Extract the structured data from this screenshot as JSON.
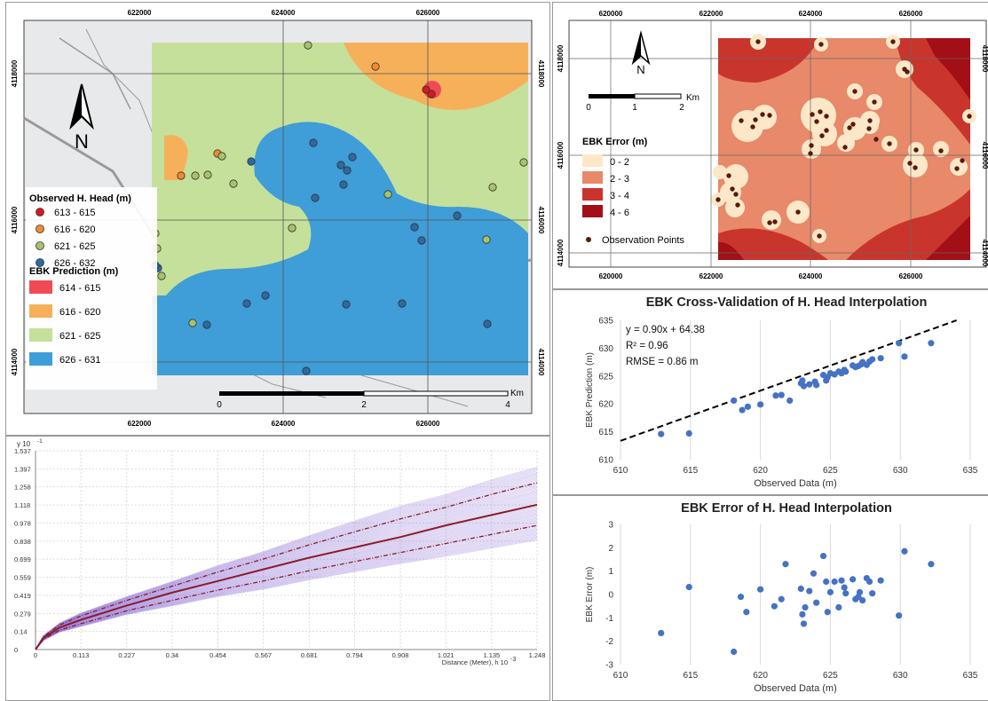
{
  "map_left": {
    "top_ticks": [
      "622000",
      "624000",
      "626000"
    ],
    "bottom_ticks": [
      "622000",
      "624000",
      "626000"
    ],
    "left_ticks": [
      "4118000",
      "4116000",
      "4114000"
    ],
    "right_ticks": [
      "4118000",
      "4116000",
      "4114000"
    ],
    "north_label": "N",
    "scale_labels": [
      "0",
      "2",
      "4"
    ],
    "scale_unit": "Km",
    "legend_observed_title": "Observed H. Head (m)",
    "observed_classes": [
      {
        "label": "613 - 615",
        "color": "#d7191c"
      },
      {
        "label": "616 - 620",
        "color": "#f08c2c"
      },
      {
        "label": "621 - 625",
        "color": "#a6c26b"
      },
      {
        "label": "626 - 632",
        "color": "#2c6aa0"
      }
    ],
    "legend_prediction_title": "EBK Prediction (m)",
    "prediction_classes": [
      {
        "label": "614 - 615",
        "color": "#f04a55"
      },
      {
        "label": "616 - 620",
        "color": "#f7b05a"
      },
      {
        "label": "621 - 625",
        "color": "#c5e09b"
      },
      {
        "label": "626 - 631",
        "color": "#3f9dd8"
      }
    ]
  },
  "map_right": {
    "top_ticks": [
      "620000",
      "622000",
      "624000",
      "626000"
    ],
    "bottom_ticks": [
      "620000",
      "622000",
      "624000",
      "626000"
    ],
    "left_ticks": [
      "4118000",
      "4116000",
      "4114000"
    ],
    "right_ticks": [
      "4118000",
      "4116000",
      "4114000"
    ],
    "north_label": "N",
    "scale_labels": [
      "0",
      "1",
      "2"
    ],
    "scale_unit": "Km",
    "legend_title": "EBK Error (m)",
    "error_classes": [
      {
        "label": "0 - 2",
        "color": "#fce8c8"
      },
      {
        "label": "2 - 3",
        "color": "#e8896a"
      },
      {
        "label": "3 - 4",
        "color": "#c9352c"
      },
      {
        "label": "4 - 6",
        "color": "#a30f16"
      }
    ],
    "points_label": "Observation Points",
    "points_color": "#5a1a0a"
  },
  "chart_data": [
    {
      "type": "scatter",
      "title": "EBK Cross-Validation of H. Head Interpolation",
      "xlabel": "Observed Data (m)",
      "ylabel": "EBK Prediction (m)",
      "xlim": [
        610,
        635
      ],
      "ylim": [
        610,
        635
      ],
      "xticks": [
        610,
        615,
        620,
        625,
        630,
        635
      ],
      "yticks": [
        610,
        615,
        620,
        625,
        630,
        635
      ],
      "annotations": [
        "y = 0.90x + 64.38",
        "R² = 0.96",
        "RMSE = 0.86 m"
      ],
      "trendline": {
        "slope": 0.9,
        "intercept": 64.38
      },
      "point_color": "#4472c4",
      "x": [
        612.9,
        614.9,
        618.1,
        618.7,
        619.1,
        620.0,
        621.1,
        621.5,
        622.1,
        622.9,
        623.0,
        623.1,
        623.5,
        623.9,
        624.0,
        624.5,
        624.7,
        624.8,
        625.0,
        625.3,
        625.6,
        625.8,
        626.0,
        626.1,
        626.6,
        626.8,
        627.0,
        627.2,
        627.3,
        627.6,
        627.8,
        628.0,
        628.6,
        629.9,
        630.3,
        632.2
      ],
      "y": [
        614.6,
        614.7,
        620.6,
        618.9,
        619.5,
        619.9,
        621.5,
        621.6,
        620.6,
        623.7,
        624.2,
        623.2,
        623.5,
        624.0,
        623.4,
        625.2,
        624.2,
        624.8,
        625.5,
        625.3,
        625.8,
        625.5,
        626.1,
        625.8,
        626.9,
        626.6,
        626.8,
        627.1,
        627.5,
        627.0,
        627.6,
        628.0,
        628.2,
        630.9,
        628.5,
        630.9
      ]
    },
    {
      "type": "scatter",
      "title": "EBK Error of H. Head Interpolation",
      "xlabel": "Observed Data (m)",
      "ylabel": "EBK Error (m)",
      "xlim": [
        610,
        635
      ],
      "ylim": [
        -3,
        3
      ],
      "xticks": [
        610,
        615,
        620,
        625,
        630,
        635
      ],
      "yticks": [
        -3,
        -2,
        -1,
        0,
        1,
        2,
        3
      ],
      "point_color": "#4472c4",
      "x": [
        612.9,
        614.9,
        618.1,
        618.6,
        619.0,
        620.0,
        621.0,
        621.5,
        621.8,
        622.9,
        623.0,
        623.1,
        623.2,
        623.5,
        623.8,
        624.0,
        624.5,
        624.7,
        624.8,
        625.0,
        625.3,
        625.6,
        625.8,
        626.0,
        626.1,
        626.6,
        626.8,
        627.0,
        627.1,
        627.3,
        627.6,
        627.8,
        628.0,
        628.6,
        629.9,
        630.3,
        632.2
      ],
      "y": [
        -1.65,
        0.32,
        -2.45,
        -0.1,
        -0.75,
        0.22,
        -0.5,
        -0.2,
        1.3,
        0.25,
        -0.85,
        -1.25,
        -0.55,
        0.15,
        0.9,
        -0.35,
        1.65,
        0.55,
        -0.75,
        0.1,
        0.55,
        -0.55,
        0.6,
        0.3,
        0.05,
        0.65,
        -0.2,
        -0.1,
        0.1,
        -0.25,
        0.7,
        0.55,
        0.05,
        0.6,
        -0.9,
        1.85,
        1.3
      ]
    },
    {
      "type": "line",
      "ylabel_prefix": "γ",
      "yexp": "10",
      "yexp_power": "-1",
      "xlabel": "Distance (Meter), h",
      "xexp": "10",
      "xexp_power": "-3",
      "xlim": [
        0,
        1.248
      ],
      "ylim": [
        0,
        1.537
      ],
      "xticks": [
        "0",
        "0.113",
        "0.227",
        "0.34",
        "0.454",
        "0.567",
        "0.681",
        "0.794",
        "0.908",
        "1.021",
        "1.135",
        "1.248"
      ],
      "yticks": [
        "1.537",
        "1.397",
        "1.258",
        "1.118",
        "0.978",
        "0.838",
        "0.699",
        "0.559",
        "0.419",
        "0.279",
        "0.14",
        "0"
      ],
      "median": {
        "x": [
          0,
          0.02,
          0.06,
          0.113,
          0.227,
          0.34,
          0.454,
          0.567,
          0.681,
          0.794,
          0.908,
          1.021,
          1.135,
          1.248
        ],
        "y": [
          0,
          0.09,
          0.17,
          0.23,
          0.34,
          0.44,
          0.53,
          0.62,
          0.71,
          0.79,
          0.87,
          0.96,
          1.04,
          1.12
        ]
      },
      "upper": {
        "x": [
          0,
          0.02,
          0.06,
          0.113,
          0.227,
          0.34,
          0.454,
          0.567,
          0.681,
          0.794,
          0.908,
          1.021,
          1.135,
          1.248
        ],
        "y": [
          0,
          0.1,
          0.19,
          0.26,
          0.38,
          0.49,
          0.6,
          0.7,
          0.81,
          0.91,
          1.01,
          1.1,
          1.2,
          1.29
        ]
      },
      "lower": {
        "x": [
          0,
          0.02,
          0.06,
          0.113,
          0.227,
          0.34,
          0.454,
          0.567,
          0.681,
          0.794,
          0.908,
          1.021,
          1.135,
          1.248
        ],
        "y": [
          0,
          0.08,
          0.15,
          0.2,
          0.3,
          0.38,
          0.46,
          0.53,
          0.61,
          0.68,
          0.75,
          0.82,
          0.89,
          0.96
        ]
      },
      "curve_color": "#8b1c2a",
      "envelope_color": "#8c6fd6"
    }
  ]
}
